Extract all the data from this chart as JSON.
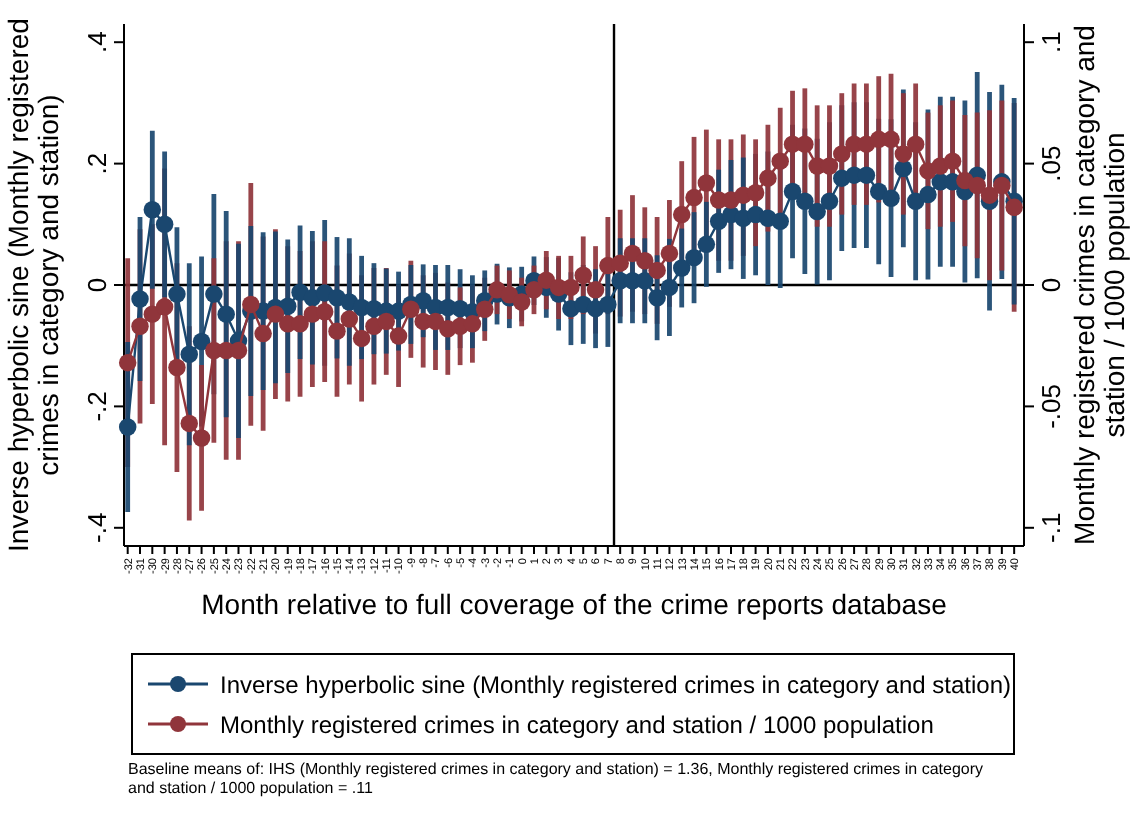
{
  "chart_data": {
    "type": "line",
    "xlabel": "Month relative to full coverage of the crime reports database",
    "ylabel": "Inverse hyperbolic sine (Monthly registered crimes in category and station)",
    "y2label": "Monthly registered crimes in category and station / 1000 population",
    "x": [
      -32,
      -31,
      -30,
      -29,
      -28,
      -27,
      -26,
      -25,
      -24,
      -23,
      -22,
      -21,
      -20,
      -19,
      -18,
      -17,
      -16,
      -15,
      -14,
      -13,
      -12,
      -11,
      -10,
      -9,
      -8,
      -7,
      -6,
      -5,
      -4,
      -3,
      -2,
      -1,
      0,
      1,
      2,
      3,
      4,
      5,
      6,
      7,
      8,
      9,
      10,
      11,
      12,
      13,
      14,
      15,
      16,
      17,
      18,
      19,
      20,
      21,
      22,
      23,
      24,
      25,
      26,
      27,
      28,
      29,
      30,
      31,
      32,
      33,
      34,
      35,
      36,
      37,
      38,
      39,
      40
    ],
    "xlim": [
      -32.3,
      40.8
    ],
    "xticks": [
      -32,
      -31,
      -30,
      -29,
      -28,
      -27,
      -26,
      -25,
      -24,
      -23,
      -22,
      -21,
      -20,
      -19,
      -18,
      -17,
      -16,
      -15,
      -14,
      -13,
      -12,
      -11,
      -10,
      -9,
      -8,
      -7,
      -6,
      -5,
      -4,
      -3,
      -2,
      -1,
      0,
      1,
      2,
      3,
      4,
      5,
      6,
      7,
      8,
      9,
      10,
      11,
      12,
      13,
      14,
      15,
      16,
      17,
      18,
      19,
      20,
      21,
      22,
      23,
      24,
      25,
      26,
      27,
      28,
      29,
      30,
      31,
      32,
      33,
      34,
      35,
      36,
      37,
      38,
      39,
      40
    ],
    "ylim": [
      -0.43,
      0.43
    ],
    "yticks": [
      {
        "value": -0.4,
        "label": "-.4"
      },
      {
        "value": -0.2,
        "label": "-.2"
      },
      0,
      {
        "value": 0.2,
        "label": ".2"
      },
      {
        "value": 0.4,
        "label": ".4"
      }
    ],
    "y2lim": [
      -0.1075,
      0.1075
    ],
    "y2ticks": [
      {
        "value": -0.1,
        "label": "-.1"
      },
      {
        "value": -0.05,
        "label": "-.05"
      },
      0,
      {
        "value": 0.05,
        "label": ".05"
      },
      {
        "value": 0.1,
        "label": ".1"
      }
    ],
    "marker": "circle",
    "line_style": "solid",
    "legend": "bottom",
    "grid": false,
    "ref_lines": [
      {
        "axis": "y",
        "value": 0,
        "color": "#000000"
      },
      {
        "axis": "x",
        "value": 7.5,
        "color": "#000000"
      }
    ],
    "annotations": [
      "Baseline means of: IHS (Monthly registered crimes in category and station) = 1.36, Monthly registered crimes in category and station / 1000 population = .11"
    ],
    "series": [
      {
        "name": "Inverse hyperbolic sine (Monthly registered crimes in category and station)",
        "color": "#1a476f",
        "values": [
          -0.234,
          -0.023,
          0.124,
          0.1,
          -0.015,
          -0.114,
          -0.093,
          -0.015,
          -0.048,
          -0.092,
          -0.043,
          -0.043,
          -0.037,
          -0.035,
          -0.012,
          -0.021,
          -0.013,
          -0.021,
          -0.028,
          -0.037,
          -0.039,
          -0.043,
          -0.043,
          -0.032,
          -0.026,
          -0.037,
          -0.037,
          -0.039,
          -0.044,
          -0.026,
          -0.015,
          -0.021,
          -0.015,
          0.007,
          -0.004,
          -0.015,
          -0.039,
          -0.032,
          -0.039,
          -0.032,
          0.007,
          0.007,
          0.007,
          -0.021,
          -0.004,
          0.028,
          0.045,
          0.067,
          0.105,
          0.116,
          0.11,
          0.116,
          0.11,
          0.105,
          0.154,
          0.138,
          0.121,
          0.138,
          0.176,
          0.181,
          0.181,
          0.154,
          0.143,
          0.192,
          0.138,
          0.149,
          0.17,
          0.17,
          0.154,
          0.181,
          0.138,
          0.17,
          0.138
        ],
        "errors": [
          0.14,
          0.135,
          0.13,
          0.12,
          0.11,
          0.15,
          0.14,
          0.165,
          0.17,
          0.16,
          0.14,
          0.13,
          0.125,
          0.11,
          0.11,
          0.11,
          0.12,
          0.1,
          0.105,
          0.085,
          0.075,
          0.07,
          0.065,
          0.065,
          0.06,
          0.07,
          0.07,
          0.065,
          0.06,
          0.05,
          0.05,
          0.05,
          0.045,
          0.04,
          0.05,
          0.06,
          0.06,
          0.065,
          0.065,
          0.07,
          0.07,
          0.07,
          0.07,
          0.07,
          0.08,
          0.065,
          0.075,
          0.07,
          0.085,
          0.09,
          0.1,
          0.1,
          0.11,
          0.11,
          0.11,
          0.12,
          0.12,
          0.13,
          0.12,
          0.12,
          0.12,
          0.12,
          0.13,
          0.13,
          0.13,
          0.14,
          0.14,
          0.14,
          0.15,
          0.17,
          0.18,
          0.16,
          0.17
        ]
      },
      {
        "name": "Monthly registered crimes in category and station / 1000 population",
        "color": "#90353b",
        "axis": "y2",
        "values": [
          -0.032,
          -0.017,
          -0.012,
          -0.009,
          -0.034,
          -0.057,
          -0.063,
          -0.027,
          -0.027,
          -0.027,
          -0.008,
          -0.02,
          -0.012,
          -0.016,
          -0.016,
          -0.012,
          -0.011,
          -0.019,
          -0.014,
          -0.022,
          -0.017,
          -0.015,
          -0.021,
          -0.01,
          -0.015,
          -0.015,
          -0.018,
          -0.017,
          -0.016,
          -0.01,
          -0.002,
          -0.004,
          -0.007,
          -0.002,
          0.002,
          -0.001,
          -0.001,
          0.004,
          -0.002,
          0.008,
          0.009,
          0.013,
          0.01,
          0.006,
          0.013,
          0.029,
          0.036,
          0.042,
          0.035,
          0.035,
          0.037,
          0.038,
          0.044,
          0.051,
          0.058,
          0.058,
          0.049,
          0.049,
          0.054,
          0.058,
          0.058,
          0.06,
          0.06,
          0.054,
          0.058,
          0.047,
          0.049,
          0.051,
          0.043,
          0.041,
          0.037,
          0.041,
          0.032
        ],
        "errors": [
          0.043,
          0.04,
          0.037,
          0.057,
          0.043,
          0.04,
          0.03,
          0.038,
          0.045,
          0.045,
          0.05,
          0.04,
          0.035,
          0.032,
          0.03,
          0.03,
          0.029,
          0.027,
          0.027,
          0.026,
          0.024,
          0.022,
          0.021,
          0.02,
          0.019,
          0.02,
          0.019,
          0.016,
          0.016,
          0.013,
          0.01,
          0.01,
          0.01,
          0.01,
          0.012,
          0.013,
          0.013,
          0.016,
          0.018,
          0.02,
          0.022,
          0.024,
          0.022,
          0.022,
          0.022,
          0.022,
          0.025,
          0.022,
          0.025,
          0.025,
          0.025,
          0.022,
          0.022,
          0.022,
          0.022,
          0.023,
          0.025,
          0.025,
          0.025,
          0.025,
          0.025,
          0.026,
          0.027,
          0.025,
          0.025,
          0.024,
          0.025,
          0.025,
          0.027,
          0.03,
          0.035,
          0.035,
          0.043
        ]
      }
    ]
  }
}
